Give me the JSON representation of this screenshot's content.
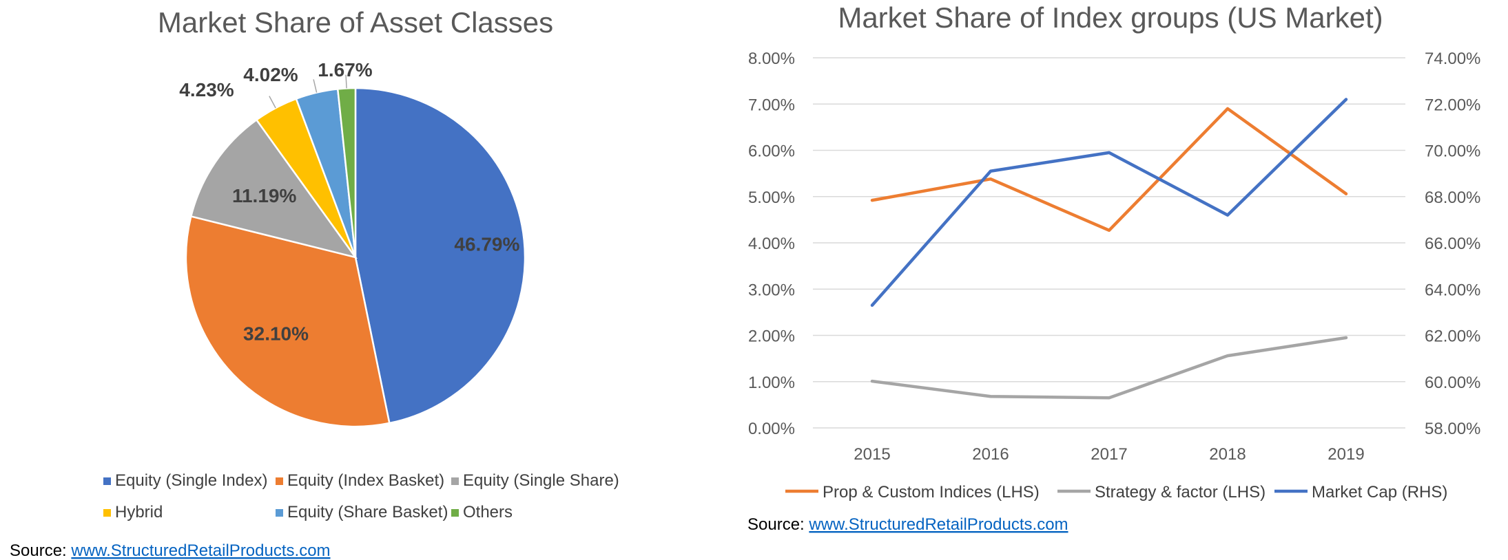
{
  "source": {
    "prefix": "Source: ",
    "link": "www.StructuredRetailProducts.com"
  },
  "chart_data": [
    {
      "type": "pie",
      "title": "Market Share of Asset Classes",
      "categories": [
        "Equity (Single Index)",
        "Equity (Index Basket)",
        "Equity (Single Share)",
        "Hybrid",
        "Equity (Share Basket)",
        "Others"
      ],
      "values": [
        46.79,
        32.1,
        11.19,
        4.23,
        4.02,
        1.67
      ],
      "labels": [
        "46.79%",
        "32.10%",
        "11.19%",
        "4.23%",
        "4.02%",
        "1.67%"
      ],
      "colors": [
        "#4472C4",
        "#ED7D31",
        "#A5A5A5",
        "#FFC000",
        "#5B9BD5",
        "#70AD47"
      ],
      "legend_position": "bottom"
    },
    {
      "type": "line",
      "title": "Market Share of Index groups (US Market)",
      "x": [
        "2015",
        "2016",
        "2017",
        "2018",
        "2019"
      ],
      "y_left": {
        "min": 0,
        "max": 8,
        "ticks": [
          "0.00%",
          "1.00%",
          "2.00%",
          "3.00%",
          "4.00%",
          "5.00%",
          "6.00%",
          "7.00%",
          "8.00%"
        ]
      },
      "y_right": {
        "min": 58,
        "max": 74,
        "ticks": [
          "58.00%",
          "60.00%",
          "62.00%",
          "64.00%",
          "66.00%",
          "68.00%",
          "70.00%",
          "72.00%",
          "74.00%"
        ]
      },
      "grid": true,
      "legend_position": "bottom",
      "series": [
        {
          "name": "Prop & Custom Indices (LHS)",
          "axis": "left",
          "color": "#ED7D31",
          "values": [
            4.92,
            5.38,
            4.27,
            6.9,
            5.06
          ]
        },
        {
          "name": "Strategy & factor (LHS)",
          "axis": "left",
          "color": "#A5A5A5",
          "values": [
            1.01,
            0.68,
            0.65,
            1.56,
            1.95
          ]
        },
        {
          "name": "Market Cap (RHS)",
          "axis": "right",
          "color": "#4472C4",
          "values": [
            63.3,
            69.1,
            69.9,
            67.2,
            72.2
          ]
        }
      ]
    }
  ]
}
